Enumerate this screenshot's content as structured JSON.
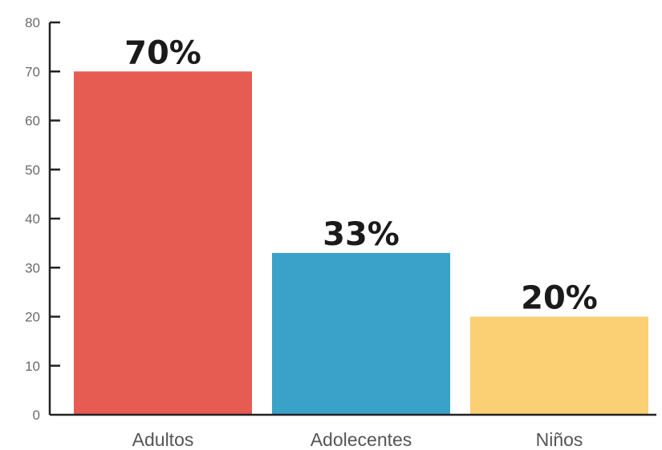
{
  "chart_data": {
    "type": "bar",
    "categories": [
      "Adultos",
      "Adolecentes",
      "Niños"
    ],
    "values": [
      70,
      33,
      20
    ],
    "data_labels": [
      "70%",
      "33%",
      "20%"
    ],
    "colors": [
      "#e65b52",
      "#3aa2c9",
      "#fbcf74"
    ],
    "ylim": [
      0,
      80
    ],
    "yticks": [
      0,
      10,
      20,
      30,
      40,
      50,
      60,
      70,
      80
    ],
    "grid": false,
    "legend": "none",
    "title": "",
    "xlabel": "",
    "ylabel": ""
  }
}
